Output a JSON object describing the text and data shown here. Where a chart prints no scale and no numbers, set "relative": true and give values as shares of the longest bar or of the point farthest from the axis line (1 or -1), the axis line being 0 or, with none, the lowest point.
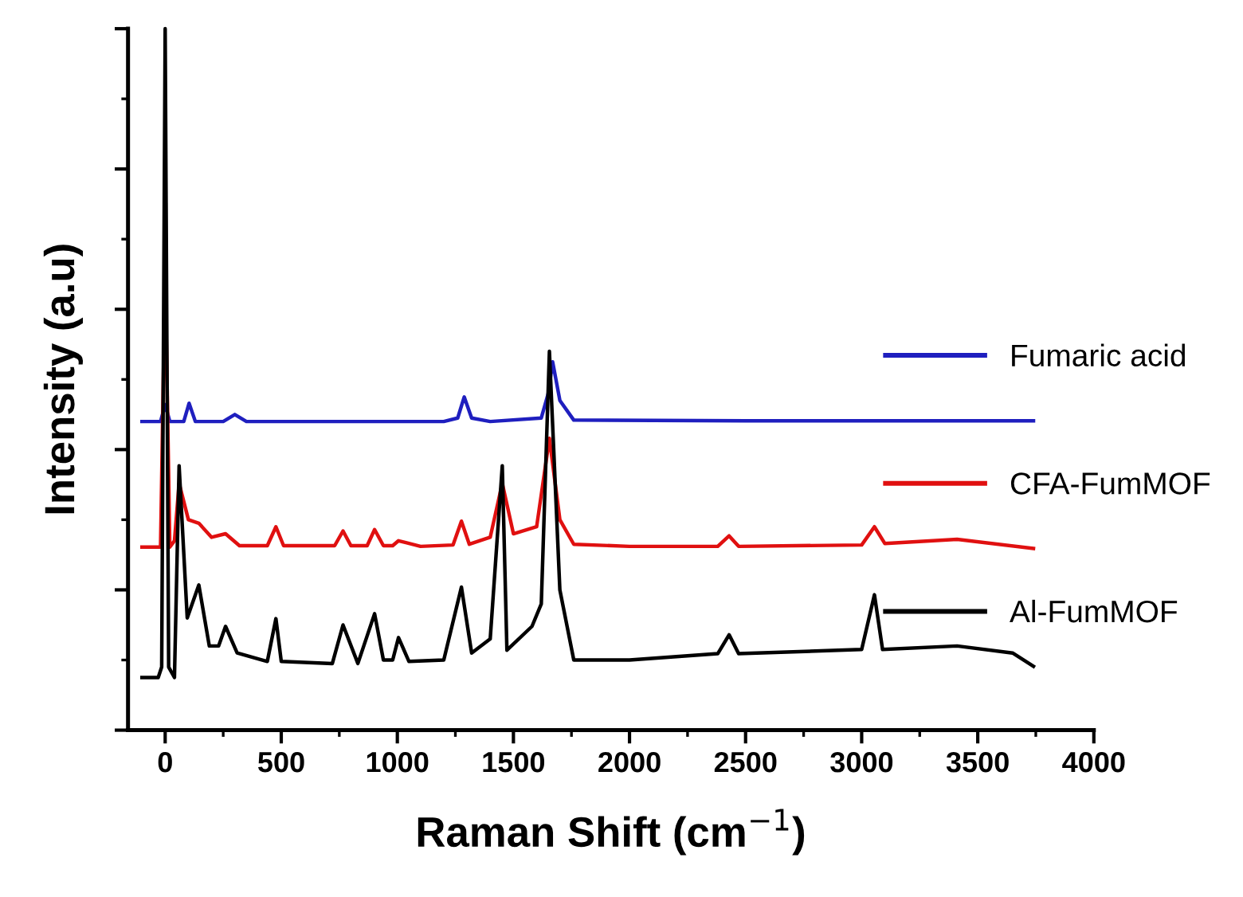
{
  "chart_data": {
    "type": "line",
    "xlabel": "Raman Shift (cm$^{−1}$)",
    "ylabel": "Intensity (a.u)",
    "relative": true,
    "xlim": [
      -160,
      4000
    ],
    "xticks": [
      0,
      500,
      1000,
      1500,
      2000,
      2500,
      3000,
      3500,
      4000
    ],
    "legend": "right",
    "grid": false,
    "line_style": "solid",
    "marker": "none",
    "series": [
      {
        "name": "Fumaric acid",
        "color": "#1f1fbf",
        "x": [
          -100,
          -20,
          0,
          20,
          80,
          103,
          130,
          250,
          300,
          350,
          1200,
          1260,
          1288,
          1320,
          1400,
          1620,
          1650,
          1669,
          1700,
          1760,
          2500,
          3000,
          3740
        ],
        "values": [
          0.44,
          0.44,
          0.464,
          0.44,
          0.44,
          0.466,
          0.44,
          0.44,
          0.45,
          0.44,
          0.44,
          0.445,
          0.475,
          0.445,
          0.44,
          0.445,
          0.48,
          0.525,
          0.47,
          0.442,
          0.441,
          0.441,
          0.441
        ]
      },
      {
        "name": "CFA-FumMOF",
        "color": "#e01010",
        "x": [
          -100,
          -20,
          0,
          20,
          40,
          60,
          100,
          145,
          200,
          260,
          320,
          440,
          477,
          510,
          730,
          766,
          800,
          870,
          902,
          940,
          980,
          1005,
          1100,
          1240,
          1276,
          1310,
          1400,
          1452,
          1500,
          1600,
          1655,
          1700,
          1760,
          2000,
          2380,
          2429,
          2470,
          3000,
          3055,
          3100,
          3411,
          3740
        ],
        "values": [
          0.261,
          0.261,
          0.659,
          0.261,
          0.27,
          0.352,
          0.3,
          0.295,
          0.275,
          0.28,
          0.263,
          0.263,
          0.29,
          0.263,
          0.263,
          0.284,
          0.263,
          0.263,
          0.286,
          0.263,
          0.263,
          0.27,
          0.262,
          0.264,
          0.298,
          0.265,
          0.275,
          0.352,
          0.28,
          0.29,
          0.416,
          0.3,
          0.265,
          0.262,
          0.262,
          0.277,
          0.262,
          0.264,
          0.29,
          0.266,
          0.272,
          0.259
        ]
      },
      {
        "name": "Al-FumMOF",
        "color": "#000000",
        "x": [
          -100,
          -30,
          -15,
          0,
          15,
          40,
          60,
          95,
          145,
          190,
          230,
          260,
          310,
          440,
          477,
          500,
          720,
          766,
          830,
          902,
          940,
          980,
          1005,
          1050,
          1200,
          1276,
          1320,
          1400,
          1452,
          1472,
          1580,
          1620,
          1655,
          1700,
          1760,
          2000,
          2380,
          2429,
          2470,
          3000,
          3055,
          3090,
          3411,
          3650,
          3740
        ],
        "values": [
          0.075,
          0.075,
          0.09,
          1,
          0.09,
          0.075,
          0.377,
          0.16,
          0.207,
          0.12,
          0.12,
          0.148,
          0.11,
          0.098,
          0.159,
          0.098,
          0.095,
          0.15,
          0.095,
          0.166,
          0.1,
          0.1,
          0.132,
          0.098,
          0.1,
          0.204,
          0.11,
          0.13,
          0.377,
          0.114,
          0.148,
          0.18,
          0.54,
          0.2,
          0.1,
          0.1,
          0.109,
          0.136,
          0.109,
          0.115,
          0.193,
          0.115,
          0.12,
          0.11,
          0.091
        ]
      }
    ]
  }
}
